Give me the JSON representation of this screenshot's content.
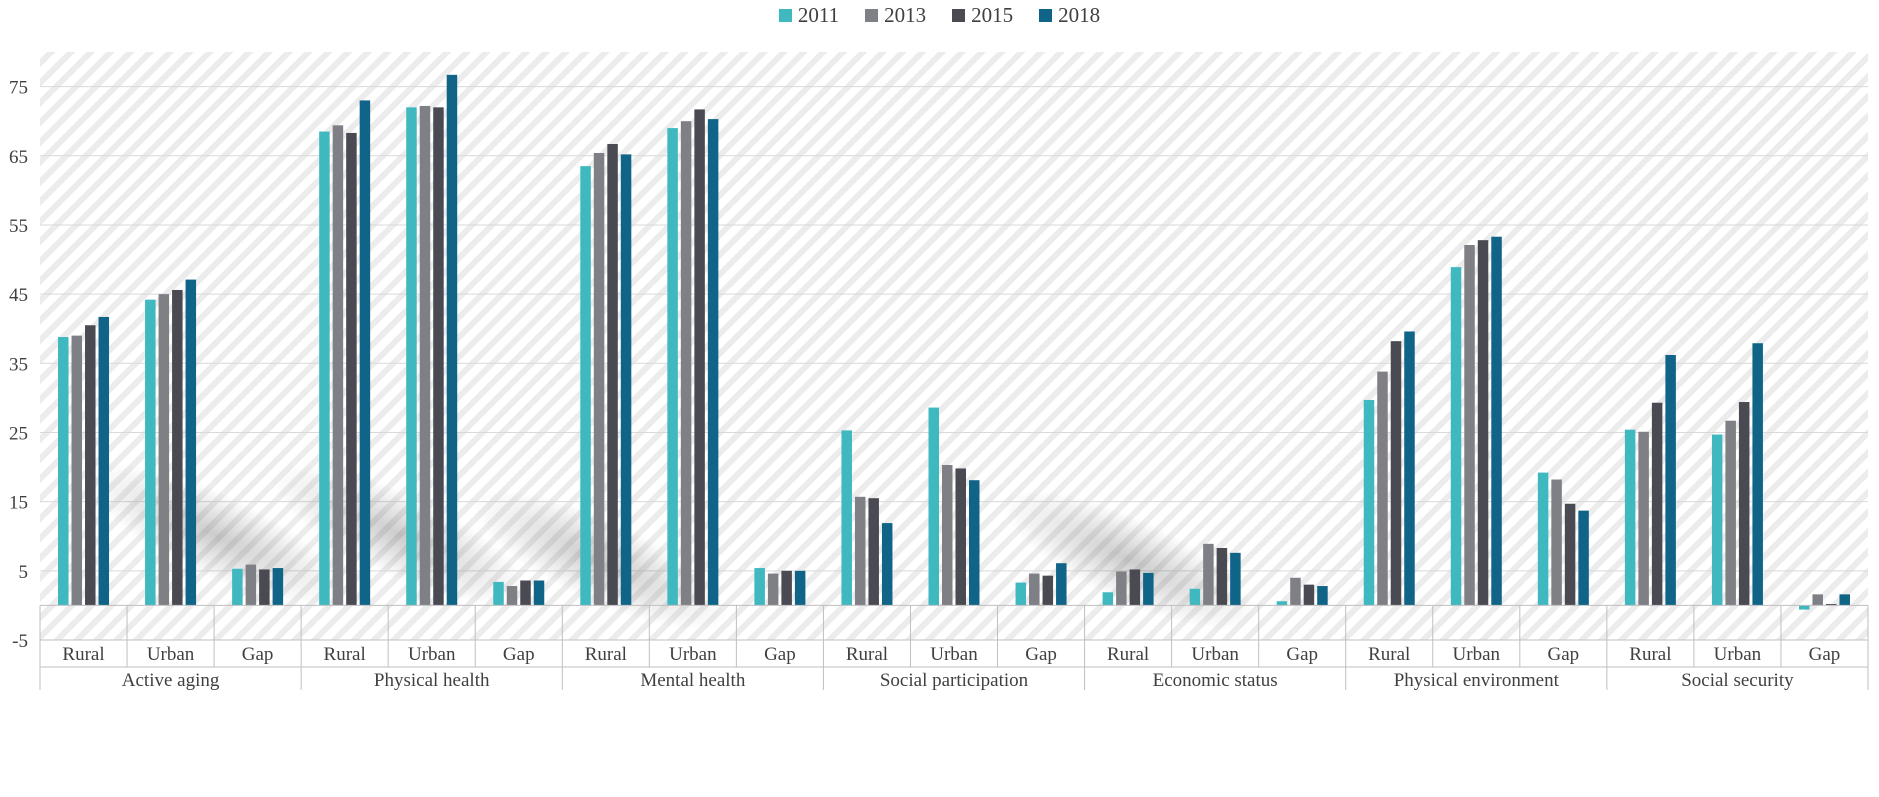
{
  "chart_data": {
    "type": "bar",
    "title": "",
    "xlabel": "",
    "ylabel": "",
    "ylim": [
      -5,
      80
    ],
    "yticks": [
      -5,
      5,
      15,
      25,
      35,
      45,
      55,
      65,
      75
    ],
    "grid": true,
    "legend_position": "top-center",
    "groups": [
      "Active aging",
      "Physical health",
      "Mental health",
      "Social participation",
      "Economic status",
      "Physical environment",
      "Social security"
    ],
    "subcategories": [
      "Rural",
      "Urban",
      "Gap"
    ],
    "series": [
      {
        "name": "2011",
        "color": "#3fb8c0",
        "values": [
          38.8,
          44.2,
          5.3,
          68.5,
          72.0,
          3.4,
          63.5,
          69.0,
          5.4,
          25.3,
          28.6,
          3.3,
          1.9,
          2.4,
          0.6,
          29.7,
          48.9,
          19.2,
          25.4,
          24.7,
          -0.6
        ]
      },
      {
        "name": "2013",
        "color": "#7f7f86",
        "values": [
          39.0,
          45.0,
          5.9,
          69.4,
          72.2,
          2.8,
          65.4,
          70.0,
          4.6,
          15.7,
          20.3,
          4.6,
          4.9,
          8.9,
          4.0,
          33.8,
          52.1,
          18.2,
          25.1,
          26.7,
          1.6
        ]
      },
      {
        "name": "2015",
        "color": "#4a4a52",
        "values": [
          40.5,
          45.6,
          5.2,
          68.3,
          72.0,
          3.6,
          66.7,
          71.7,
          5.0,
          15.5,
          19.8,
          4.3,
          5.2,
          8.3,
          3.0,
          38.2,
          52.8,
          14.7,
          29.3,
          29.4,
          0.2
        ]
      },
      {
        "name": "2018",
        "color": "#106487",
        "values": [
          41.7,
          47.1,
          5.4,
          73.0,
          76.7,
          3.6,
          65.2,
          70.3,
          5.0,
          11.9,
          18.1,
          6.1,
          4.7,
          7.6,
          2.8,
          39.6,
          53.3,
          13.7,
          36.2,
          37.9,
          1.6
        ]
      }
    ]
  }
}
